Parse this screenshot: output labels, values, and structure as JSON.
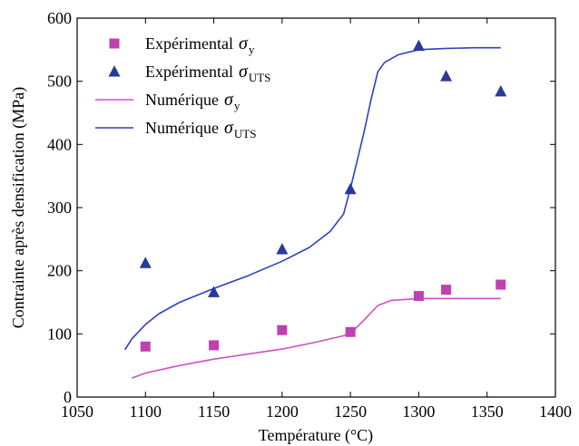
{
  "chart_data": {
    "type": "scatter",
    "xlabel": "Température (°C)",
    "ylabel": "Contrainte après densification (MPa)",
    "xlim": [
      1050,
      1400
    ],
    "ylim": [
      0,
      600
    ],
    "xticks": [
      1050,
      1100,
      1150,
      1200,
      1250,
      1300,
      1350,
      1400
    ],
    "yticks": [
      0,
      100,
      200,
      300,
      400,
      500,
      600
    ],
    "grid": false,
    "legend_position": "top-left",
    "series": [
      {
        "name": "Expérimental σ_y",
        "label_text": "Expérimental",
        "symbol": "σ",
        "subscript": "y",
        "kind": "marker",
        "marker": "square",
        "color": "#c040b0",
        "x": [
          1100,
          1150,
          1200,
          1250,
          1300,
          1320,
          1360
        ],
        "y": [
          80,
          82,
          106,
          103,
          160,
          170,
          178
        ]
      },
      {
        "name": "Expérimental σ_UTS",
        "label_text": "Expérimental",
        "symbol": "σ",
        "subscript": "UTS",
        "kind": "marker",
        "marker": "triangle",
        "color": "#2a3a9a",
        "x": [
          1100,
          1150,
          1200,
          1250,
          1300,
          1320,
          1360
        ],
        "y": [
          212,
          166,
          234,
          329,
          556,
          508,
          484
        ]
      },
      {
        "name": "Numérique σ_y",
        "label_text": "Numérique",
        "symbol": "σ",
        "subscript": "y",
        "kind": "line",
        "color": "#d050c0",
        "x": [
          1090,
          1100,
          1125,
          1150,
          1175,
          1200,
          1225,
          1245,
          1252,
          1260,
          1270,
          1280,
          1300,
          1320,
          1340,
          1360
        ],
        "y": [
          30,
          38,
          50,
          60,
          68,
          76,
          87,
          97,
          105,
          122,
          145,
          153,
          156,
          156,
          156,
          156
        ]
      },
      {
        "name": "Numérique σ_UTS",
        "label_text": "Numérique",
        "symbol": "σ",
        "subscript": "UTS",
        "kind": "line",
        "color": "#3040c0",
        "x": [
          1085,
          1090,
          1100,
          1110,
          1125,
          1150,
          1175,
          1200,
          1220,
          1235,
          1245,
          1250,
          1255,
          1260,
          1265,
          1270,
          1275,
          1285,
          1300,
          1320,
          1340,
          1360
        ],
        "y": [
          75,
          92,
          115,
          132,
          150,
          172,
          192,
          215,
          237,
          262,
          290,
          330,
          375,
          420,
          470,
          515,
          530,
          542,
          550,
          552,
          553,
          553
        ]
      }
    ]
  }
}
